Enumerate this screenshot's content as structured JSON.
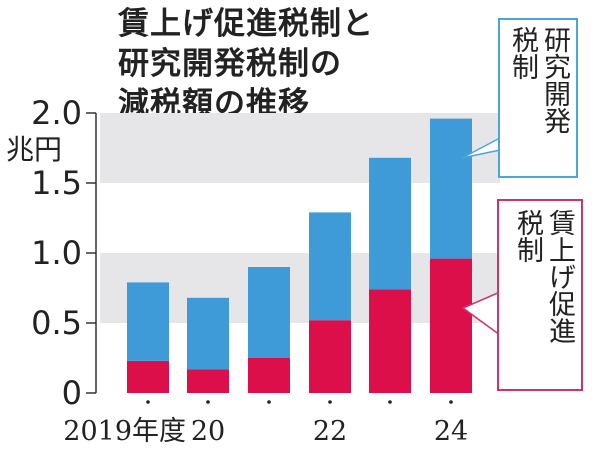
{
  "chart_data": {
    "type": "bar",
    "stacked": true,
    "title_lines": [
      "賃上げ促進税制と",
      "研究開発税制の",
      "減税額の推移"
    ],
    "ylabel": "兆円",
    "ylim": [
      0,
      2.0
    ],
    "yticks": [
      "0",
      "0.5",
      "1.0",
      "1.5",
      "2.0"
    ],
    "ytick_values": [
      0,
      0.5,
      1.0,
      1.5,
      2.0
    ],
    "shaded_bands": [
      [
        0.5,
        1.0
      ],
      [
        1.5,
        2.0
      ]
    ],
    "categories": [
      "2019年度",
      "20",
      "",
      "22",
      "",
      "24"
    ],
    "category_dot": "・",
    "series": [
      {
        "name": "賃上げ促進税制",
        "legend_lines": [
          "賃上げ促進",
          "税制"
        ],
        "color": "#dc0f4b",
        "values": [
          0.23,
          0.17,
          0.25,
          0.52,
          0.74,
          0.96
        ]
      },
      {
        "name": "研究開発税制",
        "legend_lines": [
          "研究開発",
          "税制"
        ],
        "color": "#3f9bd8",
        "values": [
          0.56,
          0.51,
          0.65,
          0.77,
          0.94,
          1.0
        ]
      }
    ],
    "colors": {
      "band": "#e6e6e8",
      "axis": "#333333",
      "rd_border": "#4aa6d8",
      "wage_border": "#d0336a"
    }
  }
}
